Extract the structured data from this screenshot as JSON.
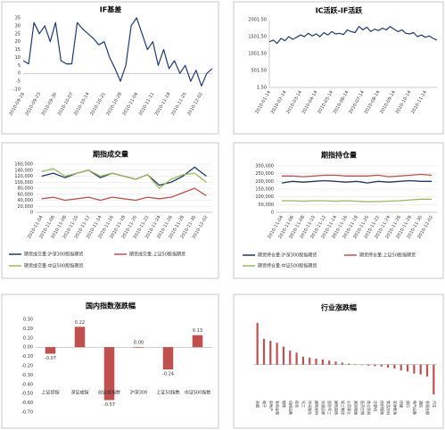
{
  "chart_data": [
    {
      "type": "line",
      "title": "IF基差",
      "color": "#1f3a70",
      "categories": [
        "2010-09-16",
        null,
        null,
        "2010-09-23",
        null,
        null,
        "2010-09-30",
        null,
        null,
        "2010-10-07",
        null,
        null,
        "2010-10-14",
        null,
        null,
        "2010-10-21",
        null,
        null,
        "2010-10-28",
        null,
        null,
        "2010-11-04",
        null,
        null,
        "2010-11-11",
        null,
        null,
        "2010-11-18",
        null,
        null,
        "2010-11-25",
        null,
        null,
        "2010-12-02",
        null,
        null
      ],
      "values": [
        8,
        6,
        32,
        25,
        30,
        20,
        32,
        8,
        6,
        6,
        32,
        28,
        25,
        22,
        18,
        20,
        10,
        3,
        -5,
        5,
        30,
        35,
        25,
        15,
        20,
        5,
        15,
        3,
        8,
        0,
        5,
        -5,
        2,
        -8,
        0,
        3
      ],
      "ylim": [
        -10,
        35
      ],
      "yticks": [
        -10,
        -5,
        0,
        5,
        10,
        15,
        20,
        25,
        30,
        35
      ],
      "grid": false
    },
    {
      "type": "line",
      "title": "IC活跃-IF活跃",
      "color": "#1f3a70",
      "categories": [
        "2010-01-14",
        null,
        null,
        null,
        "2010-02-14",
        null,
        null,
        null,
        "2010-03-14",
        null,
        null,
        null,
        "2010-04-14",
        null,
        null,
        null,
        "2010-05-14",
        null,
        null,
        null,
        "2010-06-14",
        null,
        null,
        null,
        "2010-07-14",
        null,
        null,
        null,
        "2010-08-14",
        null,
        null,
        null,
        "2010-09-14",
        null,
        null,
        null,
        "2010-10-14",
        null,
        null,
        null,
        "2010-11-14",
        null,
        null,
        null
      ],
      "values": [
        1350,
        1400,
        1300,
        1450,
        1380,
        1500,
        1420,
        1480,
        1550,
        1500,
        1600,
        1520,
        1580,
        1500,
        1620,
        1550,
        1650,
        1580,
        1600,
        1560,
        1700,
        1650,
        1620,
        1800,
        1700,
        1780,
        1650,
        1720,
        1680,
        1750,
        1700,
        1800,
        1720,
        1650,
        1700,
        1600,
        1580,
        1620,
        1500,
        1550,
        1480,
        1520,
        1450,
        1400
      ],
      "ylim": [
        1.5,
        2001.5
      ],
      "yticks": [
        {
          "value": 1.5,
          "label": "1.50"
        },
        {
          "value": 501.5,
          "label": "501.50"
        },
        {
          "value": 1001.5,
          "label": "1001.50"
        },
        {
          "value": 1501.5,
          "label": "1501.50"
        },
        {
          "value": 2001.5,
          "label": "2001.50"
        }
      ],
      "grid": false
    },
    {
      "type": "line",
      "title": "期指成交量",
      "categories": [
        "2010-11-04",
        "2010-11-06",
        "2010-11-08",
        "2010-11-10",
        "2010-11-12",
        "2010-11-14",
        "2010-11-16",
        "2010-11-18",
        "2010-11-20",
        "2010-11-22",
        "2010-11-24",
        "2010-11-26",
        "2010-11-28",
        "2010-11-30",
        "2010-12-02"
      ],
      "series": [
        {
          "name": "期货成交量:沪深300股指期货",
          "color": "#1f3864",
          "values": [
            120000,
            130000,
            115000,
            130000,
            140000,
            115000,
            130000,
            120000,
            110000,
            125000,
            90000,
            100000,
            120000,
            150000,
            120000
          ]
        },
        {
          "name": "期货成交量:上证50股指期货",
          "color": "#c0504d",
          "values": [
            45000,
            50000,
            40000,
            45000,
            50000,
            40000,
            50000,
            45000,
            40000,
            50000,
            45000,
            50000,
            65000,
            80000,
            55000
          ]
        },
        {
          "name": "期货成交量:中证500股指期货",
          "color": "#9bbb59",
          "values": [
            135000,
            145000,
            120000,
            130000,
            140000,
            120000,
            130000,
            120000,
            110000,
            125000,
            80000,
            110000,
            125000,
            130000,
            100000
          ]
        }
      ],
      "ylim": [
        0,
        160000
      ],
      "yticks": [
        0,
        {
          "value": 20000,
          "label": "20,000"
        },
        {
          "value": 40000,
          "label": "40,000"
        },
        {
          "value": 60000,
          "label": "60,000"
        },
        {
          "value": 80000,
          "label": "80,000"
        },
        {
          "value": 100000,
          "label": "100,000"
        },
        {
          "value": 120000,
          "label": "120,000"
        },
        {
          "value": 140000,
          "label": "140,000"
        },
        {
          "value": 160000,
          "label": "160,000"
        }
      ],
      "grid": true
    },
    {
      "type": "line",
      "title": "期指持仓量",
      "categories": [
        "2010-11-04",
        "2010-11-06",
        "2010-11-08",
        "2010-11-10",
        "2010-11-12",
        "2010-11-14",
        "2010-11-16",
        "2010-11-18",
        "2010-11-20",
        "2010-11-22",
        "2010-11-24",
        "2010-11-26",
        "2010-11-28",
        "2010-11-30",
        "2010-12-02"
      ],
      "series": [
        {
          "name": "期货持仓量:沪深300股指期货",
          "color": "#1f3864",
          "values": [
            190000,
            200000,
            195000,
            200000,
            205000,
            200000,
            195000,
            200000,
            190000,
            200000,
            195000,
            200000,
            205000,
            200000,
            200000
          ]
        },
        {
          "name": "期货持仓量:上证50股指期货",
          "color": "#c0504d",
          "values": [
            235000,
            235000,
            230000,
            235000,
            240000,
            240000,
            235000,
            235000,
            235000,
            240000,
            230000,
            235000,
            240000,
            245000,
            240000
          ]
        },
        {
          "name": "期货持仓量:中证500股指期货",
          "color": "#9bbb59",
          "values": [
            75000,
            75000,
            72000,
            75000,
            75000,
            72000,
            75000,
            72000,
            68000,
            70000,
            72000,
            75000,
            80000,
            85000,
            85000
          ]
        }
      ],
      "ylim": [
        0,
        300000
      ],
      "yticks": [
        0,
        {
          "value": 50000,
          "label": "50,000"
        },
        {
          "value": 100000,
          "label": "100,000"
        },
        {
          "value": 150000,
          "label": "150,000"
        },
        {
          "value": 200000,
          "label": "200,000"
        },
        {
          "value": 250000,
          "label": "250,000"
        },
        {
          "value": 300000,
          "label": "300,000"
        }
      ],
      "grid": true
    },
    {
      "type": "bar",
      "title": "国内指数涨跌幅",
      "color": "#c0504d",
      "categories": [
        "上证综指",
        "深证成指",
        "创业板指数",
        "沪深300",
        "上证50指数",
        "中证500指数"
      ],
      "values": [
        -0.07,
        0.22,
        -0.57,
        0,
        -0.24,
        0.13
      ],
      "value_labels": [
        "-0.07",
        "0.22",
        "-0.57",
        "0.00",
        "-0.24",
        "0.13"
      ],
      "ylim": [
        -0.7,
        0.3
      ],
      "yticks": [
        {
          "value": -0.7,
          "label": "-0.70"
        },
        {
          "value": -0.6,
          "label": "-0.60"
        },
        {
          "value": -0.5,
          "label": "-0.50"
        },
        {
          "value": -0.4,
          "label": "-0.40"
        },
        {
          "value": -0.3,
          "label": "-0.30"
        },
        {
          "value": -0.2,
          "label": "-0.20"
        },
        {
          "value": -0.1,
          "label": "-0.10"
        },
        {
          "value": 0,
          "label": "0.00"
        },
        {
          "value": 0.1,
          "label": "0.10"
        },
        {
          "value": 0.2,
          "label": "0.20"
        },
        {
          "value": 0.3,
          "label": "0.30"
        }
      ],
      "grid": false
    },
    {
      "type": "bar",
      "title": "行业涨跌幅",
      "color": "#c0504d",
      "categories": [
        "采掘",
        "电子",
        "房地产",
        "有色金属",
        "钢铁",
        "机械设备",
        "综合",
        "化工",
        "休闲服务",
        "建筑材料",
        "交通运输",
        "国防军工",
        "建筑装饰",
        "轻工制造",
        "公用事业",
        "家用电器",
        "医药生物",
        "商业贸易",
        "计算机",
        "纺织服装",
        "食品饮料",
        "农林牧渔",
        "传媒",
        "银行",
        "电气设备",
        "通信",
        "非银金融",
        "汽车"
      ],
      "values": [
        2.1,
        1.3,
        1.2,
        1.1,
        0.9,
        0.7,
        0.6,
        0.4,
        0.35,
        0.3,
        0.25,
        0.2,
        0.15,
        0.1,
        0.05,
        0.02,
        -0.02,
        -0.05,
        -0.08,
        -0.1,
        -0.15,
        -0.2,
        -0.3,
        -0.35,
        -0.45,
        -0.5,
        -0.6,
        -1.5
      ]
    }
  ]
}
